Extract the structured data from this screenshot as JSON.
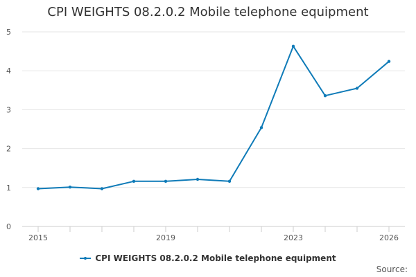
{
  "chart_data": {
    "type": "line",
    "title": "CPI WEIGHTS 08.2.0.2 Mobile telephone equipment",
    "xlabel": "",
    "ylabel": "",
    "x": [
      2015,
      2016,
      2017,
      2018,
      2019,
      2020,
      2021,
      2022,
      2023,
      2024,
      2025,
      2026
    ],
    "x_tick_values": [
      2015,
      2019,
      2023,
      2026
    ],
    "x_tick_labels": [
      "2015",
      "2019",
      "2023",
      "2026"
    ],
    "xlim": [
      2015,
      2026
    ],
    "ylim": [
      0,
      5
    ],
    "y_ticks": [
      0,
      1,
      2,
      3,
      4,
      5
    ],
    "series": [
      {
        "name": "CPI WEIGHTS 08.2.0.2 Mobile telephone equipment",
        "values": [
          0.97,
          1.01,
          0.97,
          1.16,
          1.16,
          1.21,
          1.16,
          2.54,
          4.63,
          3.36,
          3.55,
          4.24
        ]
      }
    ],
    "grid": true,
    "legend": "bottom-center",
    "colors": {
      "series": "#0f7bb8",
      "grid": "#e6e6e6",
      "axis": "#cccccc",
      "text": "#333333"
    }
  },
  "footer": {
    "source_label": "Source:"
  }
}
